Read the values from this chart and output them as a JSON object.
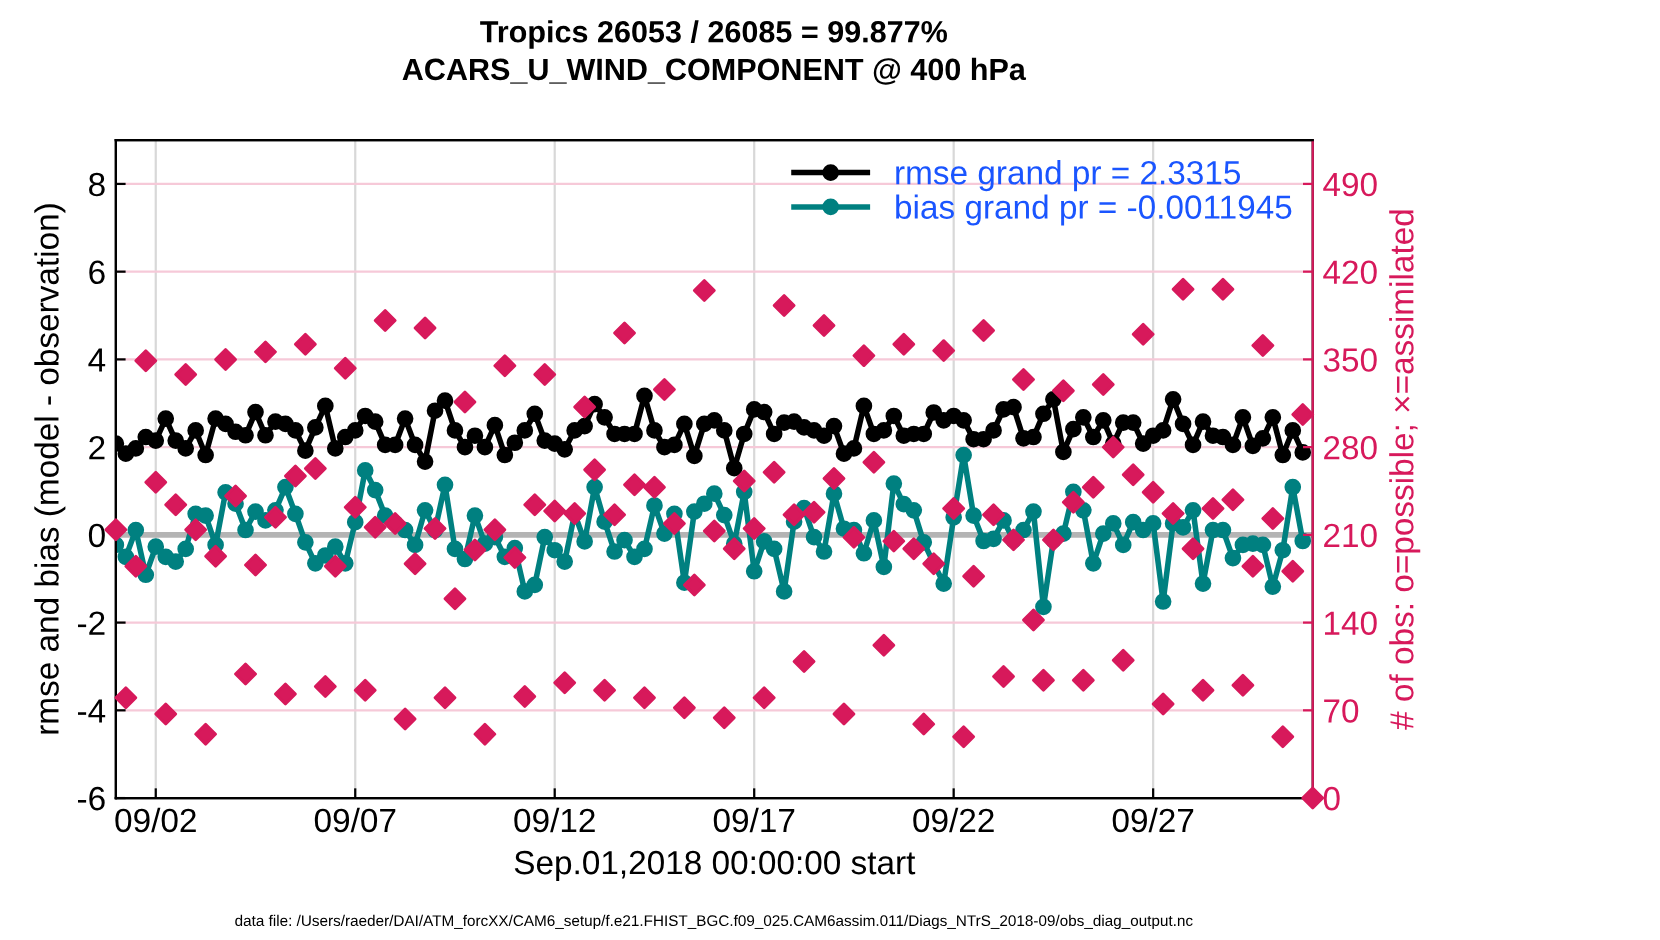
{
  "chart_data": {
    "type": "line",
    "title": "Tropics 26053 / 26085 = 99.877%",
    "subtitle": "ACARS_U_WIND_COMPONENT @ 400 hPa",
    "xlabel": "Sep.01,2018 00:00:00 start",
    "ylabel": "rmse and bias (model - observation)",
    "y2label": "# of obs: o=possible; ×=assimilated",
    "annotations": [
      "data file: /Users/raeder/DAI/ATM_forcXX/CAM6_setup/f.e21.FHIST_BGC.f09_025.CAM6assim.011/Diags_NTrS_2018-09/obs_diag_output.nc"
    ],
    "x": [
      "2018-09-01T00:00",
      "2018-09-01T06:00",
      "2018-09-01T12:00",
      "2018-09-01T18:00",
      "2018-09-02T00:00",
      "2018-09-02T06:00",
      "2018-09-02T12:00",
      "2018-09-02T18:00",
      "2018-09-03T00:00",
      "2018-09-03T06:00",
      "2018-09-03T12:00",
      "2018-09-03T18:00",
      "2018-09-04T00:00",
      "2018-09-04T06:00",
      "2018-09-04T12:00",
      "2018-09-04T18:00",
      "2018-09-05T00:00",
      "2018-09-05T06:00",
      "2018-09-05T12:00",
      "2018-09-05T18:00",
      "2018-09-06T00:00",
      "2018-09-06T06:00",
      "2018-09-06T12:00",
      "2018-09-06T18:00",
      "2018-09-07T00:00",
      "2018-09-07T06:00",
      "2018-09-07T12:00",
      "2018-09-07T18:00",
      "2018-09-08T00:00",
      "2018-09-08T06:00",
      "2018-09-08T12:00",
      "2018-09-08T18:00",
      "2018-09-09T00:00",
      "2018-09-09T06:00",
      "2018-09-09T12:00",
      "2018-09-09T18:00",
      "2018-09-10T00:00",
      "2018-09-10T06:00",
      "2018-09-10T12:00",
      "2018-09-10T18:00",
      "2018-09-11T00:00",
      "2018-09-11T06:00",
      "2018-09-11T12:00",
      "2018-09-11T18:00",
      "2018-09-12T00:00",
      "2018-09-12T06:00",
      "2018-09-12T12:00",
      "2018-09-12T18:00",
      "2018-09-13T00:00",
      "2018-09-13T06:00",
      "2018-09-13T12:00",
      "2018-09-13T18:00",
      "2018-09-14T00:00",
      "2018-09-14T06:00",
      "2018-09-14T12:00",
      "2018-09-14T18:00",
      "2018-09-15T00:00",
      "2018-09-15T06:00",
      "2018-09-15T12:00",
      "2018-09-15T18:00",
      "2018-09-16T00:00",
      "2018-09-16T06:00",
      "2018-09-16T12:00",
      "2018-09-16T18:00",
      "2018-09-17T00:00",
      "2018-09-17T06:00",
      "2018-09-17T12:00",
      "2018-09-17T18:00",
      "2018-09-18T00:00",
      "2018-09-18T06:00",
      "2018-09-18T12:00",
      "2018-09-18T18:00",
      "2018-09-19T00:00",
      "2018-09-19T06:00",
      "2018-09-19T12:00",
      "2018-09-19T18:00",
      "2018-09-20T00:00",
      "2018-09-20T06:00",
      "2018-09-20T12:00",
      "2018-09-20T18:00",
      "2018-09-21T00:00",
      "2018-09-21T06:00",
      "2018-09-21T12:00",
      "2018-09-21T18:00",
      "2018-09-22T00:00",
      "2018-09-22T06:00",
      "2018-09-22T12:00",
      "2018-09-22T18:00",
      "2018-09-23T00:00",
      "2018-09-23T06:00",
      "2018-09-23T12:00",
      "2018-09-23T18:00",
      "2018-09-24T00:00",
      "2018-09-24T06:00",
      "2018-09-24T12:00",
      "2018-09-24T18:00",
      "2018-09-25T00:00",
      "2018-09-25T06:00",
      "2018-09-25T12:00",
      "2018-09-25T18:00",
      "2018-09-26T00:00",
      "2018-09-26T06:00",
      "2018-09-26T12:00",
      "2018-09-26T18:00",
      "2018-09-27T00:00",
      "2018-09-27T06:00",
      "2018-09-27T12:00",
      "2018-09-27T18:00",
      "2018-09-28T00:00",
      "2018-09-28T06:00",
      "2018-09-28T12:00",
      "2018-09-28T18:00",
      "2018-09-29T00:00",
      "2018-09-29T06:00",
      "2018-09-29T12:00",
      "2018-09-29T18:00",
      "2018-09-30T00:00",
      "2018-09-30T06:00",
      "2018-09-30T12:00",
      "2018-09-30T18:00",
      "2018-10-01T00:00"
    ],
    "series": [
      {
        "name": "rmse grand pr = 2.3315",
        "color": "#000000",
        "marker": "circle",
        "values": [
          2.08,
          1.85,
          1.97,
          2.23,
          2.15,
          2.65,
          2.15,
          1.97,
          2.38,
          1.82,
          2.65,
          2.53,
          2.35,
          2.27,
          2.8,
          2.27,
          2.58,
          2.53,
          2.38,
          1.92,
          2.45,
          2.94,
          1.97,
          2.23,
          2.38,
          2.71,
          2.58,
          2.05,
          2.05,
          2.65,
          2.05,
          1.67,
          2.83,
          3.06,
          2.38,
          2.0,
          2.26,
          2.0,
          2.5,
          1.82,
          2.1,
          2.38,
          2.76,
          2.15,
          2.08,
          1.95,
          2.38,
          2.48,
          2.98,
          2.68,
          2.3,
          2.3,
          2.3,
          3.17,
          2.38,
          2.0,
          2.05,
          2.53,
          1.8,
          2.53,
          2.61,
          2.38,
          1.52,
          2.3,
          2.86,
          2.8,
          2.3,
          2.56,
          2.58,
          2.45,
          2.38,
          2.26,
          2.48,
          1.85,
          1.97,
          2.94,
          2.3,
          2.38,
          2.71,
          2.26,
          2.3,
          2.3,
          2.79,
          2.61,
          2.71,
          2.61,
          2.18,
          2.18,
          2.38,
          2.86,
          2.91,
          2.2,
          2.23,
          2.76,
          3.09,
          1.89,
          2.41,
          2.68,
          2.23,
          2.61,
          2.08,
          2.56,
          2.56,
          2.08,
          2.26,
          2.38,
          3.09,
          2.53,
          2.05,
          2.58,
          2.26,
          2.23,
          2.05,
          2.68,
          2.03,
          2.2,
          2.68,
          1.82,
          2.38,
          1.88,
          null
        ]
      },
      {
        "name": "bias grand pr = -0.0011945",
        "color": "#008080",
        "marker": "circle",
        "values": [
          -0.23,
          -0.5,
          0.11,
          -0.91,
          -0.27,
          -0.5,
          -0.61,
          -0.32,
          0.48,
          0.44,
          -0.23,
          0.97,
          0.71,
          0.11,
          0.53,
          0.33,
          0.56,
          1.09,
          0.48,
          -0.17,
          -0.65,
          -0.47,
          -0.27,
          -0.65,
          0.29,
          1.47,
          1.02,
          0.44,
          0.26,
          0.11,
          -0.23,
          0.56,
          0.11,
          1.14,
          -0.32,
          -0.55,
          0.44,
          -0.2,
          -0.05,
          -0.5,
          -0.3,
          -1.29,
          -1.14,
          -0.05,
          -0.35,
          -0.61,
          0.48,
          -0.15,
          1.09,
          0.3,
          -0.38,
          -0.12,
          -0.5,
          -0.32,
          0.67,
          0.03,
          0.48,
          -1.09,
          0.53,
          0.71,
          0.94,
          0.45,
          -0.2,
          0.98,
          -0.83,
          -0.15,
          -0.32,
          -1.29,
          0.3,
          0.61,
          -0.05,
          -0.38,
          0.94,
          0.14,
          0.11,
          -0.42,
          0.33,
          -0.73,
          1.17,
          0.7,
          0.56,
          -0.17,
          -0.65,
          -1.11,
          0.4,
          1.82,
          0.44,
          -0.14,
          -0.09,
          0.33,
          -0.12,
          0.11,
          0.53,
          -1.64,
          -0.12,
          0.03,
          0.98,
          0.56,
          -0.65,
          0.03,
          0.26,
          -0.23,
          0.29,
          0.11,
          0.26,
          -1.52,
          0.26,
          0.17,
          0.56,
          -1.11,
          0.11,
          0.11,
          -0.53,
          -0.23,
          -0.2,
          -0.23,
          -1.18,
          -0.35,
          1.09,
          -0.14,
          null
        ]
      },
      {
        "type": "scatter",
        "axis": "y2",
        "color": "#d7195b",
        "marker": "diamond",
        "values": [
          214,
          80,
          185,
          349,
          252,
          67,
          234,
          338,
          214,
          51,
          193,
          350,
          241,
          99,
          186,
          356,
          224,
          83,
          257,
          362,
          263,
          89,
          185,
          343,
          232,
          86,
          216,
          381,
          219,
          63,
          187,
          375,
          215,
          80,
          159,
          316,
          198,
          51,
          214,
          345,
          192,
          81,
          234,
          338,
          229,
          92,
          227,
          312,
          262,
          86,
          226,
          371,
          250,
          80,
          248,
          326,
          219,
          72,
          170,
          405,
          213,
          64,
          199,
          253,
          215,
          80,
          260,
          393,
          226,
          109,
          228,
          377,
          255,
          67,
          208,
          353,
          268,
          122,
          205,
          362,
          199,
          59,
          187,
          357,
          231,
          49,
          177,
          373,
          226,
          97,
          206,
          334,
          142,
          94,
          206,
          325,
          236,
          94,
          248,
          330,
          280,
          110,
          258,
          370,
          244,
          75,
          227,
          406,
          199,
          86,
          231,
          406,
          238,
          90,
          185,
          361,
          223,
          49,
          181,
          306,
          0
        ]
      }
    ],
    "xlim": [
      "2018-09-01T00:00",
      "2018-10-01T00:00"
    ],
    "xticks": [
      {
        "value": "2018-09-02",
        "label": "09/02"
      },
      {
        "value": "2018-09-07",
        "label": "09/07"
      },
      {
        "value": "2018-09-12",
        "label": "09/12"
      },
      {
        "value": "2018-09-17",
        "label": "09/17"
      },
      {
        "value": "2018-09-22",
        "label": "09/22"
      },
      {
        "value": "2018-09-27",
        "label": "09/27"
      }
    ],
    "ylim": [
      -6,
      9
    ],
    "yticks": [
      -6,
      -4,
      -2,
      0,
      2,
      4,
      6,
      8
    ],
    "y2lim": [
      0,
      525
    ],
    "y2ticks": [
      0,
      70,
      140,
      210,
      280,
      350,
      420,
      490
    ],
    "ref_lines": [
      {
        "axis": "y",
        "value": 0,
        "color": "#b4b4b4"
      }
    ],
    "grid": true,
    "legend": "top right"
  }
}
